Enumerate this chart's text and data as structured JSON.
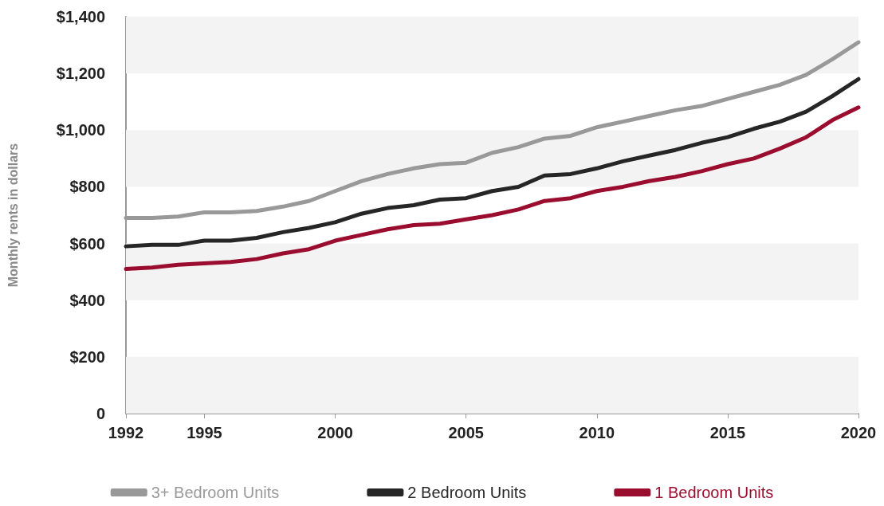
{
  "chart_data": {
    "type": "line",
    "ylabel": "Monthly rents in dollars",
    "x": [
      1992,
      1993,
      1994,
      1995,
      1996,
      1997,
      1998,
      1999,
      2000,
      2001,
      2002,
      2003,
      2004,
      2005,
      2006,
      2007,
      2008,
      2009,
      2010,
      2011,
      2012,
      2013,
      2014,
      2015,
      2016,
      2017,
      2018,
      2019,
      2020
    ],
    "series": [
      {
        "name": "3+ Bedroom Units",
        "color": "#999999",
        "values": [
          690,
          690,
          695,
          710,
          710,
          715,
          730,
          750,
          785,
          820,
          845,
          865,
          880,
          885,
          920,
          940,
          970,
          980,
          1010,
          1030,
          1050,
          1070,
          1085,
          1110,
          1135,
          1160,
          1195,
          1250,
          1310
        ]
      },
      {
        "name": "2 Bedroom Units",
        "color": "#262626",
        "values": [
          590,
          595,
          595,
          610,
          610,
          620,
          640,
          655,
          675,
          705,
          725,
          735,
          755,
          760,
          785,
          800,
          840,
          845,
          865,
          890,
          910,
          930,
          955,
          975,
          1005,
          1030,
          1065,
          1120,
          1180
        ]
      },
      {
        "name": "1 Bedroom Units",
        "color": "#9b0d2e",
        "values": [
          510,
          515,
          525,
          530,
          535,
          545,
          565,
          580,
          610,
          630,
          650,
          665,
          670,
          685,
          700,
          720,
          750,
          760,
          785,
          800,
          820,
          835,
          855,
          880,
          900,
          935,
          975,
          1035,
          1080
        ]
      }
    ],
    "xlim": [
      1992,
      2020
    ],
    "xticks": [
      1992,
      1995,
      2000,
      2005,
      2010,
      2015,
      2020
    ],
    "ylim": [
      0,
      1400
    ],
    "yticks": [
      0,
      {
        "value": 200,
        "label": "$200"
      },
      {
        "value": 400,
        "label": "$400"
      },
      {
        "value": 600,
        "label": "$600"
      },
      {
        "value": 800,
        "label": "$800"
      },
      {
        "value": 1000,
        "label": "$1,000"
      },
      {
        "value": 1200,
        "label": "$1,200"
      },
      {
        "value": 1400,
        "label": "$1,400"
      }
    ],
    "bands": [
      {
        "axis": "y",
        "from": 0,
        "to": 200,
        "color": "#f3f3f3"
      },
      {
        "axis": "y",
        "from": 400,
        "to": 600,
        "color": "#f3f3f3"
      },
      {
        "axis": "y",
        "from": 800,
        "to": 1000,
        "color": "#f3f3f3"
      },
      {
        "axis": "y",
        "from": 1200,
        "to": 1400,
        "color": "#f3f3f3"
      }
    ],
    "legend": "bottom",
    "marker": "none",
    "line_style": "solid"
  }
}
